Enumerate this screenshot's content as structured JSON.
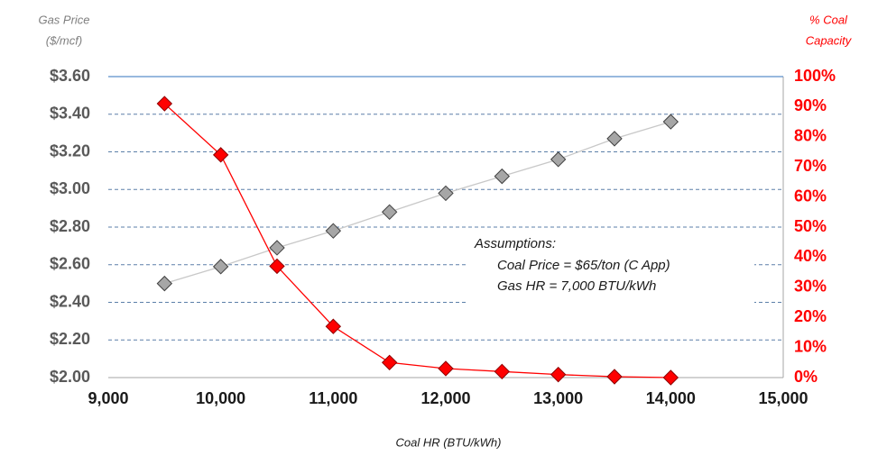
{
  "chart_data": {
    "type": "line",
    "ylabel": [
      "Gas Price",
      "($/mcf)"
    ],
    "y2label": [
      "% Coal",
      "Capacity"
    ],
    "xlabel": "Coal HR (BTU/kWh)",
    "annotations": [
      "Assumptions:",
      "Coal Price = $65/ton (C App)",
      "Gas HR = 7,000 BTU/kWh"
    ],
    "x": [
      9500,
      10000,
      10500,
      11000,
      11500,
      12000,
      12500,
      13000,
      13500,
      14000
    ],
    "series": [
      {
        "name": "Gas Price",
        "color": "#a6a6a6",
        "axis": "y",
        "values": [
          2.5,
          2.59,
          2.69,
          2.78,
          2.88,
          2.98,
          3.07,
          3.16,
          3.27,
          3.36
        ]
      },
      {
        "name": "% Coal Capacity",
        "color": "#ff0000",
        "axis": "y2",
        "values": [
          91,
          74,
          37,
          17,
          5,
          3,
          2,
          1,
          0.3,
          0
        ]
      }
    ],
    "xlim": [
      9000,
      15000
    ],
    "xticks": [
      {
        "value": 9000,
        "label": "9,000"
      },
      {
        "value": 10000,
        "label": "10,000"
      },
      {
        "value": 11000,
        "label": "11,000"
      },
      {
        "value": 12000,
        "label": "12,000"
      },
      {
        "value": 13000,
        "label": "13,000"
      },
      {
        "value": 14000,
        "label": "14,000"
      },
      {
        "value": 15000,
        "label": "15,000"
      }
    ],
    "ylim": [
      2.0,
      3.6
    ],
    "yticks": [
      {
        "value": 2.0,
        "label": "$2.00"
      },
      {
        "value": 2.2,
        "label": "$2.20"
      },
      {
        "value": 2.4,
        "label": "$2.40"
      },
      {
        "value": 2.6,
        "label": "$2.60"
      },
      {
        "value": 2.8,
        "label": "$2.80"
      },
      {
        "value": 3.0,
        "label": "$3.00"
      },
      {
        "value": 3.2,
        "label": "$3.20"
      },
      {
        "value": 3.4,
        "label": "$3.40"
      },
      {
        "value": 3.6,
        "label": "$3.60"
      }
    ],
    "y2lim": [
      0,
      100
    ],
    "y2ticks": [
      {
        "value": 0,
        "label": "0%"
      },
      {
        "value": 10,
        "label": "10%"
      },
      {
        "value": 20,
        "label": "20%"
      },
      {
        "value": 30,
        "label": "30%"
      },
      {
        "value": 40,
        "label": "40%"
      },
      {
        "value": 50,
        "label": "50%"
      },
      {
        "value": 60,
        "label": "60%"
      },
      {
        "value": 70,
        "label": "70%"
      },
      {
        "value": 80,
        "label": "80%"
      },
      {
        "value": 90,
        "label": "90%"
      },
      {
        "value": 100,
        "label": "100%"
      }
    ],
    "grid": true
  }
}
